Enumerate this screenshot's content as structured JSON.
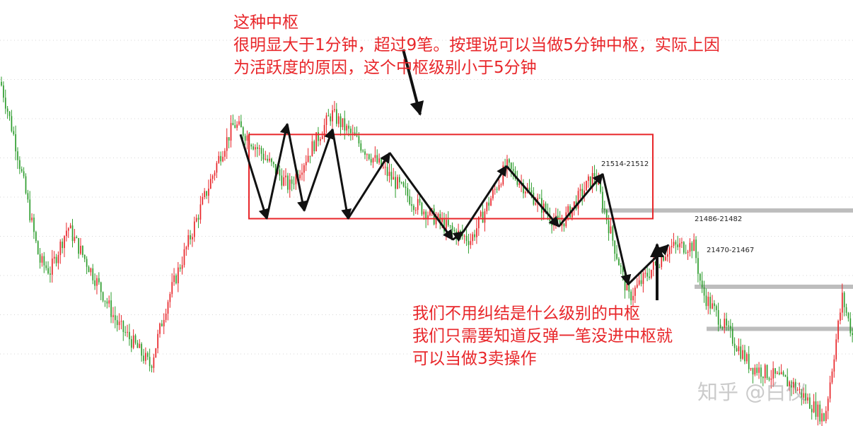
{
  "annotations": {
    "top": [
      "这种中枢",
      "很明显大于1分钟，超过9笔。按理说可以当做5分钟中枢，实际上因",
      "为活跃度的原因，这个中枢级别小于5分钟"
    ],
    "bottom": [
      "我们不用纠结是什么级别的中枢",
      "我们只需要知道反弹一笔没进中枢就",
      "可以当做3卖操作"
    ]
  },
  "watermark": "知乎 @白仪",
  "colors": {
    "up": "#e8262a",
    "down": "#2e9d2e",
    "box": "#e8262a",
    "level": "#bdbdbd",
    "grid": "#bdbdbd",
    "arrow": "#111111"
  },
  "chart_data": {
    "type": "candlestick",
    "title": "",
    "xlabel": "",
    "ylabel": "",
    "ylim": [
      21430,
      21575
    ],
    "bars": 420,
    "price_path": [
      [
        0,
        21560
      ],
      [
        20,
        21538
      ],
      [
        55,
        21492
      ],
      [
        70,
        21488
      ],
      [
        95,
        21505
      ],
      [
        140,
        21482
      ],
      [
        165,
        21468
      ],
      [
        190,
        21460
      ],
      [
        212,
        21452
      ],
      [
        235,
        21476
      ],
      [
        280,
        21510
      ],
      [
        310,
        21532
      ],
      [
        330,
        21544
      ],
      [
        347,
        21540
      ],
      [
        408,
        21520
      ],
      [
        468,
        21548
      ],
      [
        585,
        21514
      ],
      [
        640,
        21503
      ],
      [
        665,
        21500
      ],
      [
        715,
        21528
      ],
      [
        790,
        21505
      ],
      [
        840,
        21525
      ],
      [
        855,
        21510
      ],
      [
        888,
        21478
      ],
      [
        945,
        21497
      ],
      [
        980,
        21498
      ],
      [
        992,
        21480
      ],
      [
        1060,
        21452
      ],
      [
        1120,
        21445
      ],
      [
        1165,
        21432
      ],
      [
        1190,
        21478
      ],
      [
        1206,
        21462
      ]
    ],
    "zhongshu": {
      "high": 21540,
      "low": 21508,
      "label": "这种中枢"
    },
    "bi_strokes": [
      21540,
      21508,
      21544,
      21511,
      21542,
      21508,
      21533,
      21500,
      21503,
      21528,
      21505,
      21525,
      21483,
      21498
    ],
    "levels": [
      {
        "label": "21514-21512",
        "value": 21513
      },
      {
        "label": "21486-21482",
        "value": 21484
      },
      {
        "label": "21470-21467",
        "value": 21468
      }
    ]
  }
}
